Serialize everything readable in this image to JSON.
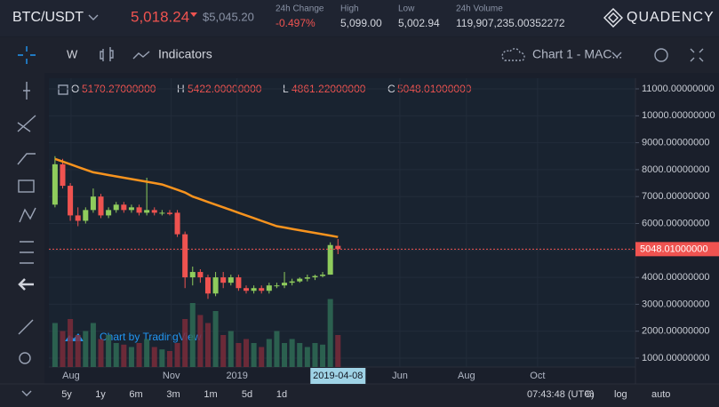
{
  "header": {
    "pair": "BTC/USDT",
    "price": "5,018.24",
    "usd_price": "$5,045.20",
    "change_label": "24h Change",
    "change": "-0.497%",
    "high_label": "High",
    "high": "5,099.00",
    "low_label": "Low",
    "low": "5,002.94",
    "volume_label": "24h Volume",
    "volume": "119,907,235.00352272",
    "brand": "QUADENCY"
  },
  "toolbar": {
    "interval": "W",
    "indicators": "Indicators",
    "chart_name": "Chart 1 - MAC..."
  },
  "chart": {
    "type": "candlestick",
    "legend": {
      "open_label": "O",
      "open": "5170.27000000",
      "high_label": "H",
      "high": "5422.00000000",
      "low_label": "L",
      "low": "4861.22000000",
      "close_label": "C",
      "close": "5048.01000000"
    },
    "open": [
      6700,
      8200,
      7400,
      6300,
      6100,
      6500,
      7000,
      6300,
      6500,
      6700,
      6500,
      6600,
      6400,
      6500,
      6400,
      6400,
      6400,
      5600,
      4000,
      4200,
      4000,
      3400,
      4000,
      3800,
      4000,
      3600,
      3500,
      3600,
      3500,
      3700,
      3700,
      3800,
      3850,
      3950,
      4000,
      4050,
      4100,
      5170.27
    ],
    "high": [
      8500,
      8400,
      7500,
      6600,
      6600,
      7300,
      7100,
      6600,
      6800,
      6800,
      6700,
      6700,
      7700,
      6600,
      6500,
      6500,
      6500,
      5700,
      4400,
      4300,
      4100,
      4200,
      4200,
      4100,
      4100,
      3700,
      3700,
      3700,
      3800,
      3800,
      4200,
      3950,
      4000,
      4100,
      4100,
      4200,
      5300,
      5422
    ],
    "low": [
      6600,
      7300,
      6100,
      5900,
      6000,
      6400,
      6200,
      6200,
      6400,
      6400,
      6400,
      6300,
      6300,
      6300,
      6300,
      6300,
      5500,
      3600,
      3700,
      3800,
      3200,
      3300,
      3600,
      3700,
      3500,
      3400,
      3400,
      3400,
      3400,
      3600,
      3600,
      3700,
      3800,
      3850,
      3900,
      4000,
      4100,
      4861.22
    ],
    "close": [
      8200,
      7400,
      6300,
      6100,
      6500,
      7000,
      6300,
      6500,
      6700,
      6500,
      6600,
      6400,
      6500,
      6400,
      6400,
      6350,
      5600,
      4000,
      4200,
      4000,
      3400,
      4000,
      3800,
      4000,
      3600,
      3500,
      3600,
      3500,
      3700,
      3700,
      3800,
      3850,
      3950,
      4000,
      4050,
      4100,
      5200,
      5048.01
    ],
    "volume": [
      55,
      45,
      60,
      40,
      45,
      55,
      35,
      40,
      30,
      28,
      25,
      30,
      35,
      25,
      22,
      20,
      30,
      60,
      80,
      65,
      55,
      70,
      40,
      45,
      30,
      35,
      30,
      25,
      35,
      45,
      30,
      35,
      30,
      25,
      30,
      28,
      85,
      40
    ],
    "volume_lim": [
      0,
      100
    ],
    "ma": [
      8400,
      8300,
      8200,
      8100,
      8000,
      7900,
      7850,
      7800,
      7750,
      7700,
      7650,
      7600,
      7550,
      7500,
      7450,
      7350,
      7250,
      7150,
      7000,
      6900,
      6800,
      6700,
      6600,
      6500,
      6400,
      6300,
      6200,
      6100,
      6000,
      5900,
      5850,
      5800,
      5750,
      5700,
      5650,
      5600,
      5550,
      5500
    ],
    "up_color": "#8fcc5c",
    "down_color": "#ef5350",
    "volume_up_color": "#2f6b55",
    "volume_down_color": "#7a2c3a",
    "ma_color": "#f7931e",
    "ylim": [
      670,
      11396
    ],
    "yticks": [
      {
        "value": 1000,
        "label": "1000.00000000"
      },
      {
        "value": 2000,
        "label": "2000.00000000"
      },
      {
        "value": 3000,
        "label": "3000.00000000"
      },
      {
        "value": 4000,
        "label": "4000.00000000"
      },
      {
        "value": 5000,
        "label": "5000.00000000"
      },
      {
        "value": 6000,
        "label": "6000.00000000"
      },
      {
        "value": 7000,
        "label": "7000.00000000"
      },
      {
        "value": 8000,
        "label": "8000.00000000"
      },
      {
        "value": 9000,
        "label": "9000.00000000"
      },
      {
        "value": 10000,
        "label": "10000.00000000"
      },
      {
        "value": 11000,
        "label": "11000.00000000"
      }
    ],
    "xlim": [
      -0.8,
      75.9
    ],
    "xticks": [
      {
        "value": 2.1,
        "label": "Aug"
      },
      {
        "value": 15.2,
        "label": "Nov"
      },
      {
        "value": 23.8,
        "label": "2019"
      },
      {
        "value": 45.1,
        "label": "Jun"
      },
      {
        "value": 53.8,
        "label": "Aug"
      },
      {
        "value": 63.1,
        "label": "Oct"
      }
    ],
    "crosshair_x": {
      "value": 37,
      "label": "2019-04-08"
    },
    "last_price": {
      "value": 5048.01,
      "label": "5048.01000000"
    },
    "watermark": "Chart by TradingView"
  },
  "footer": {
    "ranges": [
      "5y",
      "1y",
      "6m",
      "3m",
      "1m",
      "5d",
      "1d"
    ],
    "time": "07:43:48 (UTC)",
    "percent": "%",
    "log": "log",
    "auto": "auto"
  }
}
